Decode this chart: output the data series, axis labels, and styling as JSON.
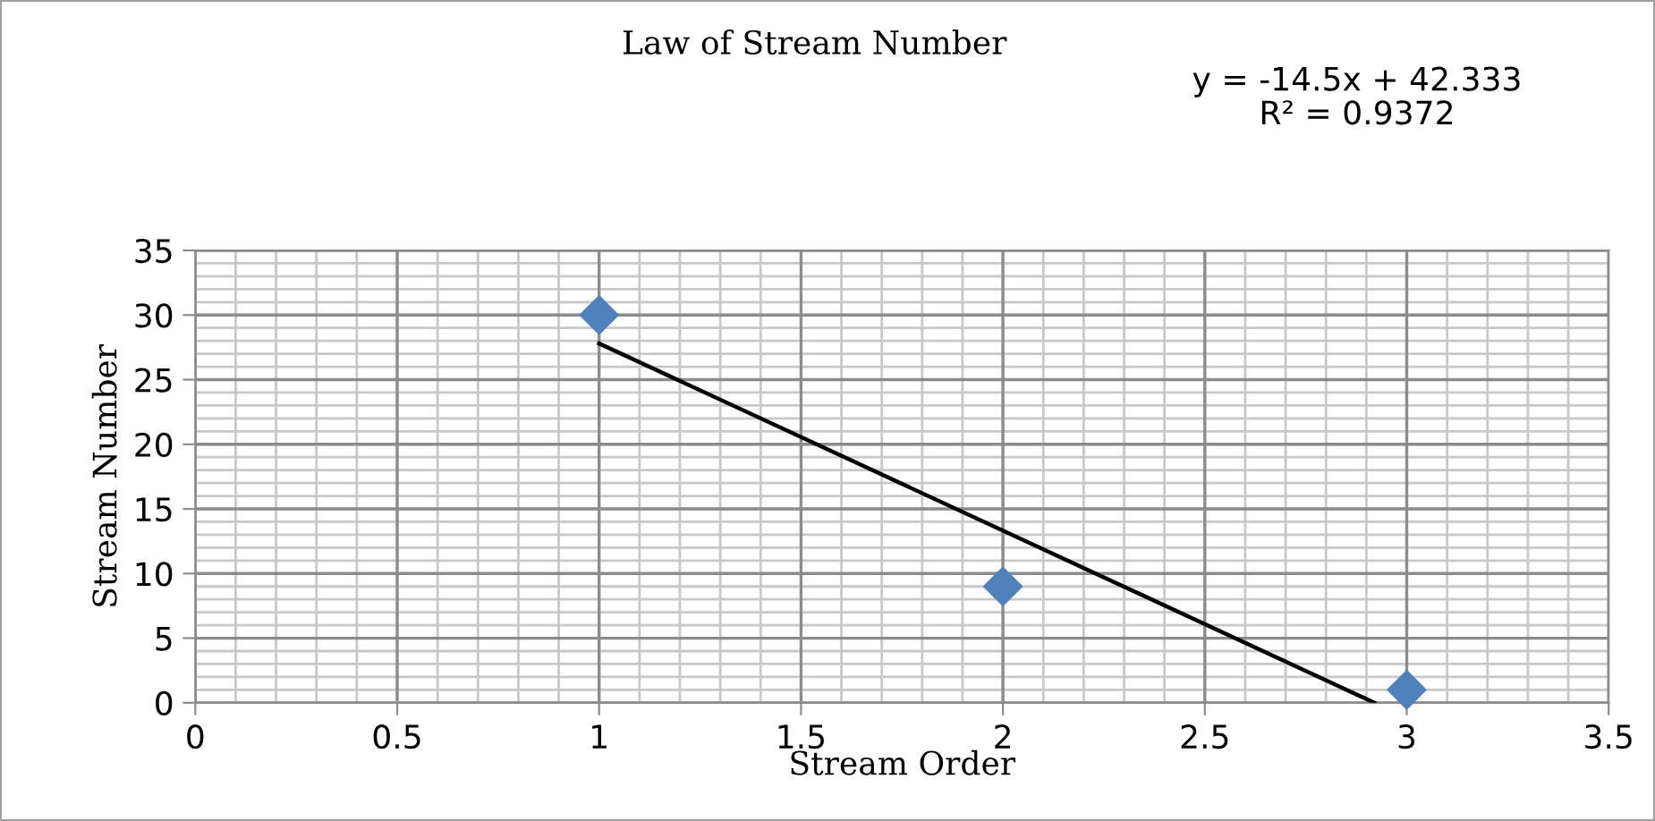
{
  "chart_data": {
    "type": "scatter",
    "title": "Law of Stream Number",
    "xlabel": "Stream Order",
    "ylabel": "Stream Number",
    "annotations": [
      "y = -14.5x + 42.333\nR² = 0.9372"
    ],
    "series": [
      {
        "color": "#4f81bd",
        "marker": "diamond",
        "x": [
          1,
          2,
          3
        ],
        "values": [
          30,
          9,
          1
        ]
      },
      {
        "type": "line",
        "color": "#000000",
        "marker": "none",
        "x": [
          1,
          2.92
        ],
        "values": [
          27.8,
          0
        ]
      }
    ],
    "xlim": [
      0,
      3.5
    ],
    "ylim": [
      0,
      35
    ],
    "xticks": [
      0,
      0.5,
      1,
      1.5,
      2,
      2.5,
      3,
      3.5
    ],
    "yticks": [
      0,
      5,
      10,
      15,
      20,
      25,
      30,
      35
    ],
    "grid": true,
    "legend": false
  }
}
